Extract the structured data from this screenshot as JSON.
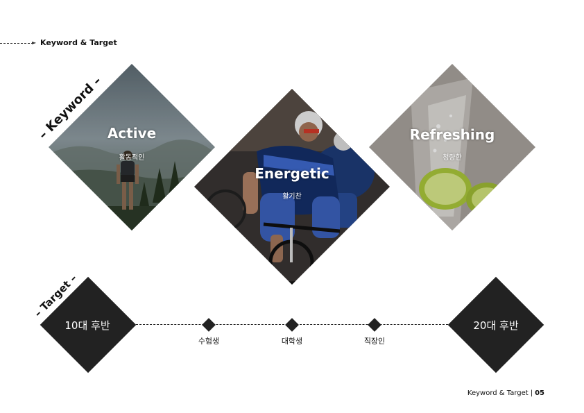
{
  "header": {
    "title": "Keyword & Target"
  },
  "keyword_section": {
    "label": "– Keyword –",
    "items": [
      {
        "title": "Active",
        "subtitle": "활동적인",
        "image": "hiker-on-mountain-photo"
      },
      {
        "title": "Energetic",
        "subtitle": "활기찬",
        "image": "road-cyclists-racing-photo"
      },
      {
        "title": "Refreshing",
        "subtitle": "청량한",
        "image": "soda-glass-with-lime-photo"
      }
    ]
  },
  "target_section": {
    "label": "– Target –",
    "start": "10대 후반",
    "end": "20대 후반",
    "steps": [
      "수험생",
      "대학생",
      "직장인"
    ]
  },
  "footer": {
    "section": "Keyword & Target",
    "page": "05"
  },
  "colors": {
    "dark_fill": "#222222",
    "text": "#111111"
  }
}
